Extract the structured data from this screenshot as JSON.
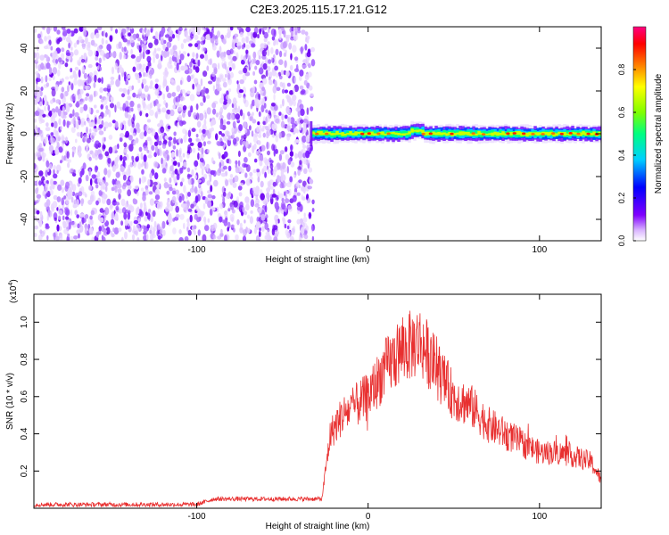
{
  "title": "C2E3.2025.115.17.21.G12",
  "chart_data": [
    {
      "type": "heatmap",
      "xlabel": "Height of straight line (km)",
      "ylabel": "Frequency (Hz)",
      "xlim": [
        -195,
        136
      ],
      "ylim": [
        -50,
        50
      ],
      "xticks": [
        -100,
        0,
        100
      ],
      "yticks": [
        -40,
        -20,
        0,
        20,
        40
      ],
      "signal_start_km": -33,
      "colorbar": {
        "label": "Normalized spectral amplitude",
        "range": [
          0,
          1
        ],
        "ticks": [
          "0.0",
          "0.2",
          "0.4",
          "0.6",
          "0.8"
        ],
        "colors": [
          "#ffffff",
          "#d9b3ff",
          "#8000ff",
          "#0000ff",
          "#00d0ff",
          "#00ff80",
          "#80ff00",
          "#ffff00",
          "#ff8000",
          "#ff0000",
          "#ff0080"
        ]
      }
    },
    {
      "type": "line",
      "xlabel": "Height of straight line (km)",
      "ylabel": "SNR (10 * v/v)",
      "y_scale_label": "(x10",
      "y_scale_exp": "4",
      "xlim": [
        -195,
        136
      ],
      "ylim": [
        0,
        1.15
      ],
      "xticks": [
        -100,
        0,
        100
      ],
      "yticks": [
        "0.2",
        "0.4",
        "0.6",
        "0.8",
        "1.0"
      ],
      "line_color": "#e83030",
      "envelope": {
        "x": [
          -195,
          -100,
          -90,
          -60,
          -40,
          -27,
          -22,
          -15,
          0,
          10,
          20,
          30,
          40,
          50,
          60,
          70,
          80,
          90,
          100,
          110,
          120,
          130,
          136
        ],
        "y": [
          0.02,
          0.02,
          0.05,
          0.05,
          0.05,
          0.05,
          0.4,
          0.5,
          0.6,
          0.75,
          0.85,
          0.9,
          0.75,
          0.6,
          0.55,
          0.45,
          0.4,
          0.35,
          0.3,
          0.3,
          0.28,
          0.25,
          0.15
        ]
      }
    }
  ]
}
